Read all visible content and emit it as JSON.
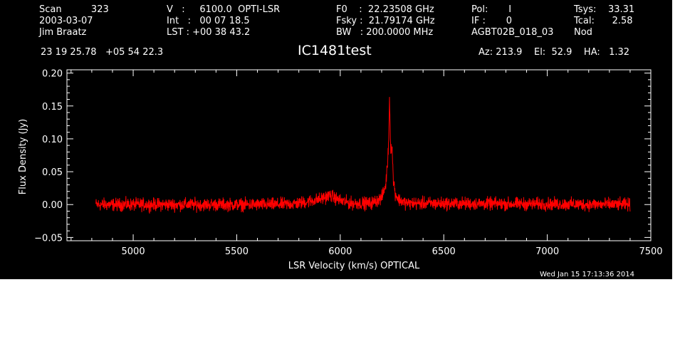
{
  "header": {
    "scan": "Scan          323",
    "date": "2003-03-07",
    "observer": "Jim Braatz",
    "velocity": "V   :     6100.0  OPTI-LSR",
    "int": "Int   :   00 07 18.5",
    "lst": "LST : +00 38 43.2",
    "f0": "F0    :  22.23508 GHz",
    "fsky": "Fsky :  21.79174 GHz",
    "bw": "BW   : 200.0000 MHz",
    "pol": "Pol:       I",
    "if": "IF :       0",
    "project": "AGBT02B_018_03",
    "tsys": "Tsys:    33.31",
    "tcal": "Tcal:      2.58",
    "mode": "Nod",
    "coords": "23 19 25.78   +05 54 22.3",
    "source": "IC1481test",
    "azelha": "Az: 213.9    El:  52.9    HA:   1.32"
  },
  "timestamp": "Wed Jan 15 17:13:36 2014",
  "chart_data": {
    "type": "line",
    "title": "IC1481test",
    "xlabel": "LSR Velocity (km/s) OPTICAL",
    "ylabel": "Flux Density (Jy)",
    "xlim": [
      4680,
      7500
    ],
    "ylim": [
      -0.055,
      0.205
    ],
    "xticks": [
      5000,
      5500,
      6000,
      6500,
      7000,
      7500
    ],
    "xtick_labels": [
      "5000",
      "5500",
      "6000",
      "6500",
      "7000",
      "7500"
    ],
    "yticks": [
      -0.05,
      0.0,
      0.05,
      0.1,
      0.15,
      0.2
    ],
    "ytick_labels": [
      "−0.05",
      "0.00",
      "0.05",
      "0.10",
      "0.15",
      "0.20"
    ],
    "grid": false,
    "series": [
      {
        "color": "#ff0000",
        "x_start": 4820,
        "x_end": 7400,
        "noise_rms": 0.006,
        "envelope": [
          [
            4820,
            0.0
          ],
          [
            5700,
            0.0
          ],
          [
            5800,
            0.002
          ],
          [
            5900,
            0.008
          ],
          [
            5950,
            0.014
          ],
          [
            6000,
            0.006
          ],
          [
            6050,
            0.002
          ],
          [
            6150,
            0.002
          ],
          [
            6200,
            0.01
          ],
          [
            6220,
            0.03
          ],
          [
            6232,
            0.08
          ],
          [
            6238,
            0.16
          ],
          [
            6244,
            0.085
          ],
          [
            6250,
            0.09
          ],
          [
            6256,
            0.04
          ],
          [
            6265,
            0.018
          ],
          [
            6280,
            0.008
          ],
          [
            6320,
            0.002
          ],
          [
            7400,
            0.0
          ]
        ]
      }
    ]
  }
}
